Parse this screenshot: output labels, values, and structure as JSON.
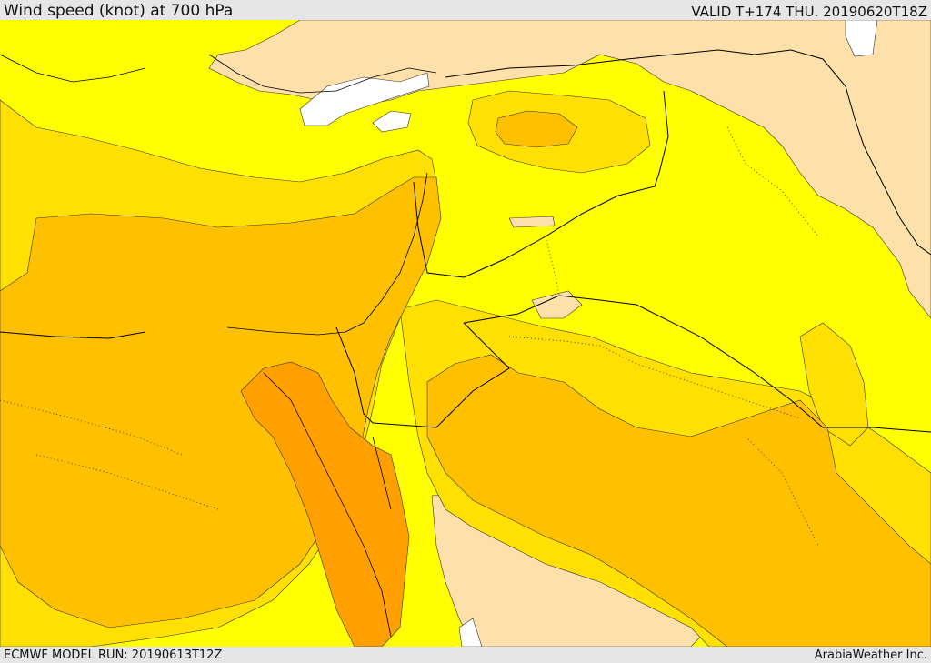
{
  "header": {
    "title": "Wind speed (knot) at 700 hPa",
    "valid": "VALID T+174 THU. 20190620T18Z"
  },
  "footer": {
    "model_run": "ECMWF MODEL RUN: 20190613T12Z",
    "credit": "ArabiaWeather Inc."
  },
  "map": {
    "variable": "wind speed at 700 hPa",
    "unit": "knot",
    "colors": {
      "white": "#ffffff",
      "peach": "#fde0aa",
      "yellow": "#ffff00",
      "light_gold": "#ffe000",
      "gold": "#ffc000",
      "amber": "#ffb000",
      "orange": "#ffa000",
      "border": "#000000"
    }
  }
}
